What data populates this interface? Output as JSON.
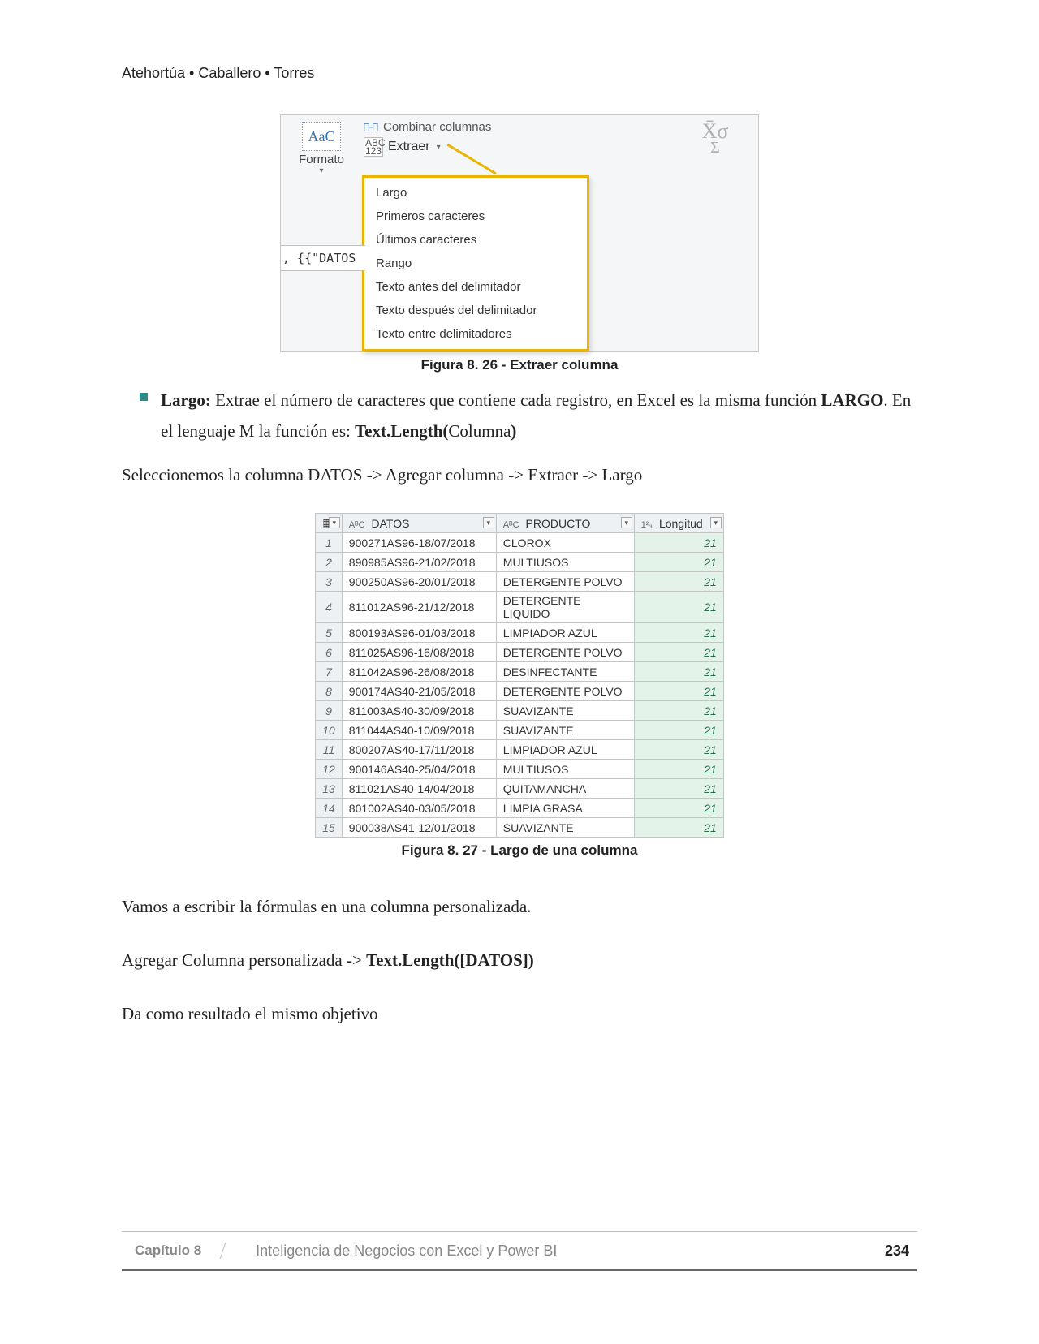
{
  "page": {
    "authors": "Atehortúa • Caballero • Torres",
    "chapter_label": "Capítulo 8",
    "book_title": "Inteligencia de Negocios con Excel y Power BI",
    "page_number": "234"
  },
  "fig826": {
    "formato_label": "Formato",
    "formato_icon_text": "AaC",
    "combinar_label": "Combinar columnas",
    "extraer_label": "Extraer",
    "abc123_top": "ABC",
    "abc123_bot": "123",
    "datos_snippet": ", {{\"DATOS",
    "xbar": "X̄σ",
    "sigma": "Σ",
    "caption": "Figura 8. 26 - Extraer columna",
    "menu_items": [
      "Largo",
      "Primeros caracteres",
      "Últimos caracteres",
      "Rango",
      "Texto antes del delimitador",
      "Texto después del delimitador",
      "Texto entre delimitadores"
    ]
  },
  "body": {
    "bullet_label": "Largo:",
    "bullet_rest1": " Extrae el número de caracteres que contiene  cada registro, en Excel es la misma función ",
    "bullet_bold1": "LARGO",
    "bullet_rest2": ". En el lenguaje M la función es: ",
    "bullet_bold2": "Text.Length(",
    "bullet_rest3": "Columna",
    "bullet_bold3": ")",
    "para_select": "Seleccionemos la columna DATOS -> Agregar columna -> Extraer -> Largo",
    "para_custom": "Vamos a escribir la fórmulas en una columna personalizada.",
    "para_add1": "Agregar Columna personalizada -> ",
    "para_add_bold": "Text.Length([DATOS])",
    "para_result": "Da como resultado el mismo objetivo"
  },
  "fig827": {
    "caption": "Figura 8. 27 - Largo de una columna",
    "columns": {
      "corner_icon": "▦",
      "datos_header": "DATOS",
      "datos_type": "AᴮC",
      "producto_header": "PRODUCTO",
      "producto_type": "AᴮC",
      "longitud_header": "Longitud",
      "longitud_type": "1²₃"
    },
    "rows": [
      {
        "n": "1",
        "datos": "900271AS96-18/07/2018",
        "prod": "CLOROX",
        "long": "21"
      },
      {
        "n": "2",
        "datos": "890985AS96-21/02/2018",
        "prod": "MULTIUSOS",
        "long": "21"
      },
      {
        "n": "3",
        "datos": "900250AS96-20/01/2018",
        "prod": "DETERGENTE POLVO",
        "long": "21"
      },
      {
        "n": "4",
        "datos": "811012AS96-21/12/2018",
        "prod": "DETERGENTE LIQUIDO",
        "long": "21"
      },
      {
        "n": "5",
        "datos": "800193AS96-01/03/2018",
        "prod": "LIMPIADOR AZUL",
        "long": "21"
      },
      {
        "n": "6",
        "datos": "811025AS96-16/08/2018",
        "prod": "DETERGENTE POLVO",
        "long": "21"
      },
      {
        "n": "7",
        "datos": "811042AS96-26/08/2018",
        "prod": "DESINFECTANTE",
        "long": "21"
      },
      {
        "n": "8",
        "datos": "900174AS40-21/05/2018",
        "prod": "DETERGENTE POLVO",
        "long": "21"
      },
      {
        "n": "9",
        "datos": "811003AS40-30/09/2018",
        "prod": "SUAVIZANTE",
        "long": "21"
      },
      {
        "n": "10",
        "datos": "811044AS40-10/09/2018",
        "prod": "SUAVIZANTE",
        "long": "21"
      },
      {
        "n": "11",
        "datos": "800207AS40-17/11/2018",
        "prod": "LIMPIADOR AZUL",
        "long": "21"
      },
      {
        "n": "12",
        "datos": "900146AS40-25/04/2018",
        "prod": "MULTIUSOS",
        "long": "21"
      },
      {
        "n": "13",
        "datos": "811021AS40-14/04/2018",
        "prod": "QUITAMANCHA",
        "long": "21"
      },
      {
        "n": "14",
        "datos": "801002AS40-03/05/2018",
        "prod": "LIMPIA GRASA",
        "long": "21"
      },
      {
        "n": "15",
        "datos": "900038AS41-12/01/2018",
        "prod": "SUAVIZANTE",
        "long": "21"
      }
    ]
  }
}
